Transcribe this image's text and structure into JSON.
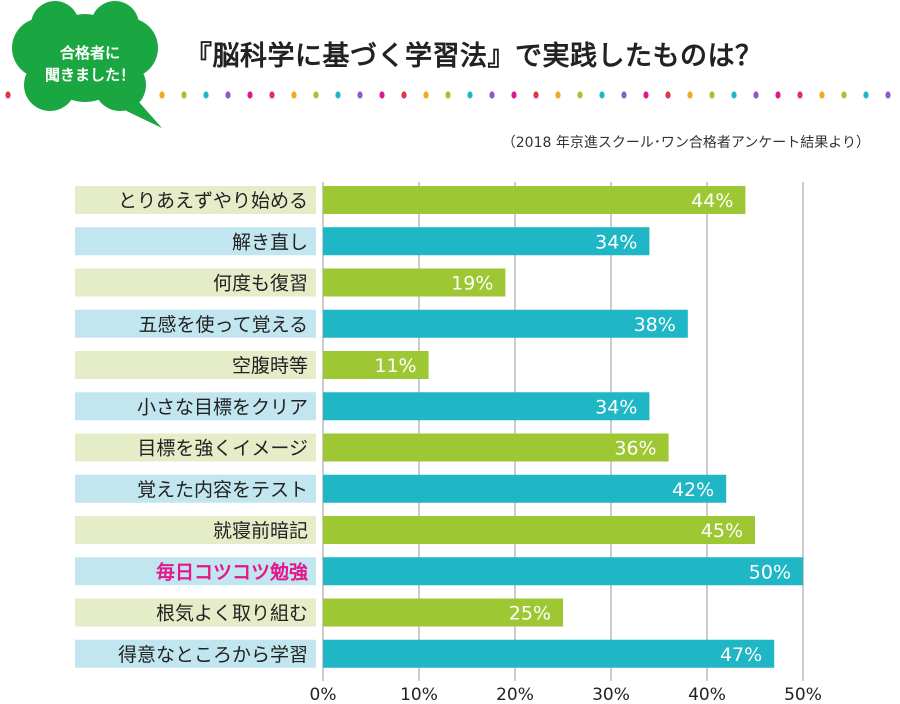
{
  "badge": {
    "line1": "合格者に",
    "line2": "聞きました！",
    "color": "#1aa640"
  },
  "title": "『脳科学に基づく学習法』で実践したものは？",
  "source": "（2018 年京進スクール･ワン合格者アンケート結果より）",
  "colors": {
    "green_bar": "#9dc733",
    "teal_bar": "#1fb6c6",
    "green_label_bg": "#e4ecc8",
    "teal_label_bg": "#c2e6ef",
    "highlight_text": "#e4168c",
    "gridline": "#999999",
    "dot_palette": [
      "#e0344a",
      "#f5a623",
      "#9dc733",
      "#1fb6c6",
      "#8b5cc7",
      "#e4168c"
    ]
  },
  "chart_data": {
    "type": "bar",
    "orientation": "horizontal",
    "categories": [
      "とりあえずやり始める",
      "解き直し",
      "何度も復習",
      "五感を使って覚える",
      "空腹時等",
      "小さな目標をクリア",
      "目標を強くイメージ",
      "覚えた内容をテスト",
      "就寝前暗記",
      "毎日コツコツ勉強",
      "根気よく取り組む",
      "得意なところから学習"
    ],
    "values": [
      44,
      34,
      19,
      38,
      11,
      34,
      36,
      42,
      45,
      50,
      25,
      47
    ],
    "value_labels": [
      "44%",
      "34%",
      "19%",
      "38%",
      "11%",
      "34%",
      "36%",
      "42%",
      "45%",
      "50%",
      "25%",
      "47%"
    ],
    "highlight_index": 9,
    "xlim": [
      0,
      50
    ],
    "ticks": [
      0,
      10,
      20,
      30,
      40,
      50
    ],
    "tick_labels": [
      "0%",
      "10%",
      "20%",
      "30%",
      "40%",
      "50%"
    ],
    "grid": true
  }
}
